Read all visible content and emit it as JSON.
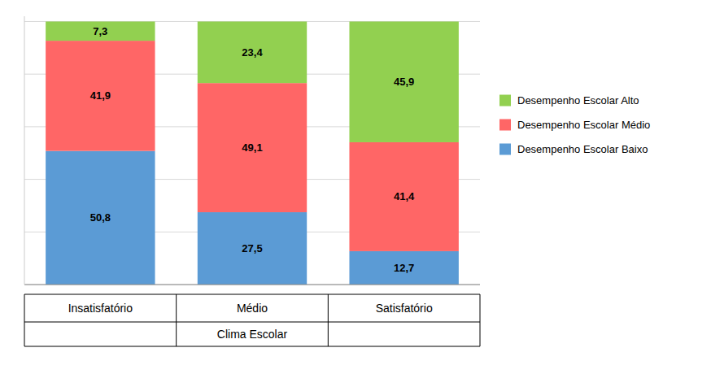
{
  "chart_data": {
    "type": "bar",
    "stacked": true,
    "categories": [
      "Insatisfatório",
      "Médio",
      "Satisfatório"
    ],
    "x_label": "Clima Escolar",
    "series": [
      {
        "name": "Desempenho Escolar Baixo",
        "color": "#5B9BD5",
        "values": [
          50.8,
          27.5,
          12.7
        ],
        "value_labels": [
          "50,8",
          "27,5",
          "12,7"
        ]
      },
      {
        "name": "Desempenho Escolar Médio",
        "color": "#FF6666",
        "values": [
          41.9,
          49.1,
          41.4
        ],
        "value_labels": [
          "41,9",
          "49,1",
          "41,4"
        ]
      },
      {
        "name": "Desempenho Escolar Alto",
        "color": "#92D050",
        "values": [
          7.3,
          23.4,
          45.9
        ],
        "value_labels": [
          "7,3",
          "23,4",
          "45,9"
        ]
      }
    ],
    "ylim": [
      0,
      102
    ],
    "yticks": [
      0,
      20,
      40,
      60,
      80,
      100
    ],
    "grid": true,
    "data_labels": true,
    "tick_labels": "x",
    "legend": "right"
  }
}
